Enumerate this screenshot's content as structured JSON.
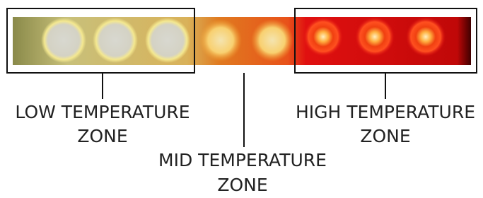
{
  "zones": [
    {
      "lines": [
        "LOW TEMPERATURE",
        "ZONE"
      ]
    },
    {
      "lines": [
        "MID TEMPERATURE",
        "ZONE"
      ]
    },
    {
      "lines": [
        "HIGH TEMPERATURE",
        "ZONE"
      ]
    }
  ]
}
